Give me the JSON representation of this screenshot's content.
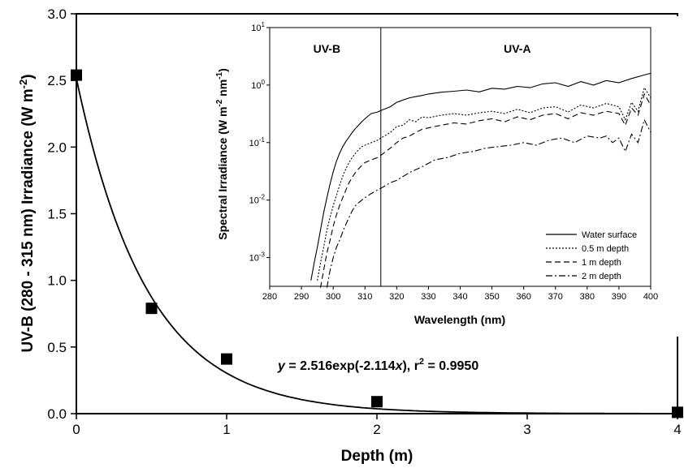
{
  "chart_data": [
    {
      "type": "scatter",
      "xlabel": "Depth (m)",
      "ylabel": {
        "main": "UV-B (280 - 315 nm) Irradiance (W m",
        "sup": "-2",
        "close": ")"
      },
      "xlim": [
        0,
        4
      ],
      "ylim": [
        0,
        3
      ],
      "x_ticks": [
        "0",
        "1",
        "2",
        "3",
        "4"
      ],
      "y_ticks": [
        "0.0",
        "0.5",
        "1.0",
        "1.5",
        "2.0",
        "2.5",
        "3.0"
      ],
      "points": [
        {
          "x": 0,
          "y": 2.54
        },
        {
          "x": 0.5,
          "y": 0.79
        },
        {
          "x": 1,
          "y": 0.41
        },
        {
          "x": 2,
          "y": 0.09
        },
        {
          "x": 4,
          "y": 0.01
        }
      ],
      "fit": {
        "a": 2.516,
        "b": -2.114
      },
      "annotation": {
        "y_part": "y",
        "mid": " = 2.516exp(-2.114",
        "x_part": "x",
        "close": "), r",
        "sup": "2",
        "tail": " = 0.9950"
      },
      "grid": false
    },
    {
      "type": "line",
      "xlabel": "Wavelength (nm)",
      "ylabel": {
        "main": "Spectral Irradiance (W m",
        "sup1": "-2",
        "mid": " nm",
        "sup2": "-1",
        "close": ")"
      },
      "xlim": [
        280,
        400
      ],
      "ylim_log10": [
        -3.5,
        1
      ],
      "log_scale": true,
      "x_ticks": [
        "280",
        "290",
        "300",
        "310",
        "320",
        "330",
        "340",
        "350",
        "360",
        "370",
        "380",
        "390",
        "400"
      ],
      "y_ticks": [
        {
          "base": "10",
          "exp": "1",
          "value": 1
        },
        {
          "base": "10",
          "exp": "0",
          "value": 0
        },
        {
          "base": "10",
          "exp": "-1",
          "value": -1
        },
        {
          "base": "10",
          "exp": "-2",
          "value": -2
        },
        {
          "base": "10",
          "exp": "-3",
          "value": -3
        }
      ],
      "regions": [
        {
          "label": "UV-B",
          "x": 298
        },
        {
          "label": "UV-A",
          "x": 358
        }
      ],
      "divider_x": 315,
      "legend_position": "bottom-right",
      "series": [
        {
          "name": "Water surface",
          "dash": "",
          "x": [
            293,
            294,
            295,
            296,
            297,
            298,
            299,
            300,
            301,
            302,
            303,
            304,
            305,
            306,
            307,
            308,
            309,
            310,
            311,
            312,
            313,
            314,
            315,
            318,
            320,
            322,
            324,
            326,
            328,
            330,
            334,
            338,
            342,
            346,
            350,
            354,
            358,
            362,
            366,
            370,
            374,
            378,
            382,
            386,
            390,
            394,
            398,
            400
          ],
          "y": [
            0.0004,
            0.0008,
            0.0015,
            0.003,
            0.006,
            0.011,
            0.019,
            0.031,
            0.047,
            0.065,
            0.085,
            0.105,
            0.125,
            0.15,
            0.175,
            0.2,
            0.23,
            0.26,
            0.29,
            0.32,
            0.33,
            0.34,
            0.36,
            0.42,
            0.5,
            0.55,
            0.6,
            0.63,
            0.66,
            0.7,
            0.75,
            0.78,
            0.82,
            0.76,
            0.88,
            0.85,
            0.95,
            0.9,
            1.05,
            1.1,
            0.95,
            1.15,
            1.0,
            1.2,
            1.1,
            1.3,
            1.5,
            1.6
          ]
        },
        {
          "name": "0.5 m depth",
          "dash": "2,2",
          "x": [
            295,
            296,
            297,
            298,
            299,
            300,
            301,
            302,
            303,
            304,
            305,
            306,
            307,
            308,
            309,
            310,
            312,
            314,
            315,
            318,
            320,
            322,
            324,
            326,
            328,
            330,
            334,
            338,
            342,
            346,
            350,
            354,
            358,
            362,
            366,
            370,
            374,
            378,
            382,
            386,
            390,
            392,
            394,
            396,
            398,
            400
          ],
          "y": [
            0.0004,
            0.0008,
            0.0015,
            0.003,
            0.005,
            0.008,
            0.012,
            0.018,
            0.026,
            0.035,
            0.045,
            0.055,
            0.065,
            0.075,
            0.085,
            0.09,
            0.1,
            0.11,
            0.12,
            0.15,
            0.19,
            0.2,
            0.25,
            0.23,
            0.28,
            0.27,
            0.3,
            0.32,
            0.3,
            0.33,
            0.35,
            0.32,
            0.38,
            0.33,
            0.4,
            0.42,
            0.34,
            0.45,
            0.4,
            0.48,
            0.42,
            0.25,
            0.5,
            0.35,
            0.9,
            0.6
          ]
        },
        {
          "name": "1 m depth",
          "dash": "7,4",
          "x": [
            296,
            297,
            298,
            299,
            300,
            301,
            302,
            303,
            304,
            305,
            306,
            307,
            308,
            309,
            310,
            312,
            314,
            315,
            318,
            320,
            322,
            324,
            326,
            328,
            330,
            334,
            338,
            342,
            346,
            350,
            354,
            358,
            362,
            366,
            370,
            374,
            378,
            382,
            386,
            390,
            392,
            394,
            396,
            398,
            400
          ],
          "y": [
            0.0003,
            0.0006,
            0.0012,
            0.002,
            0.0035,
            0.0055,
            0.008,
            0.011,
            0.015,
            0.02,
            0.025,
            0.03,
            0.035,
            0.04,
            0.045,
            0.05,
            0.055,
            0.06,
            0.08,
            0.1,
            0.12,
            0.13,
            0.15,
            0.17,
            0.18,
            0.2,
            0.22,
            0.21,
            0.24,
            0.26,
            0.23,
            0.28,
            0.25,
            0.3,
            0.32,
            0.26,
            0.33,
            0.3,
            0.35,
            0.32,
            0.2,
            0.4,
            0.3,
            0.7,
            0.45
          ]
        },
        {
          "name": "2 m depth",
          "dash": "8,3,2,3",
          "x": [
            298,
            299,
            300,
            301,
            302,
            303,
            304,
            305,
            306,
            307,
            308,
            310,
            312,
            314,
            315,
            318,
            320,
            324,
            328,
            332,
            336,
            340,
            344,
            348,
            352,
            356,
            360,
            364,
            368,
            372,
            376,
            380,
            384,
            386,
            388,
            390,
            392,
            394,
            396,
            398,
            400
          ],
          "y": [
            0.0003,
            0.0006,
            0.001,
            0.0015,
            0.002,
            0.0028,
            0.0038,
            0.005,
            0.0065,
            0.008,
            0.009,
            0.011,
            0.013,
            0.015,
            0.016,
            0.02,
            0.022,
            0.03,
            0.038,
            0.05,
            0.055,
            0.065,
            0.07,
            0.08,
            0.085,
            0.09,
            0.1,
            0.09,
            0.11,
            0.12,
            0.1,
            0.13,
            0.12,
            0.13,
            0.1,
            0.12,
            0.07,
            0.14,
            0.1,
            0.25,
            0.15
          ]
        }
      ]
    }
  ]
}
